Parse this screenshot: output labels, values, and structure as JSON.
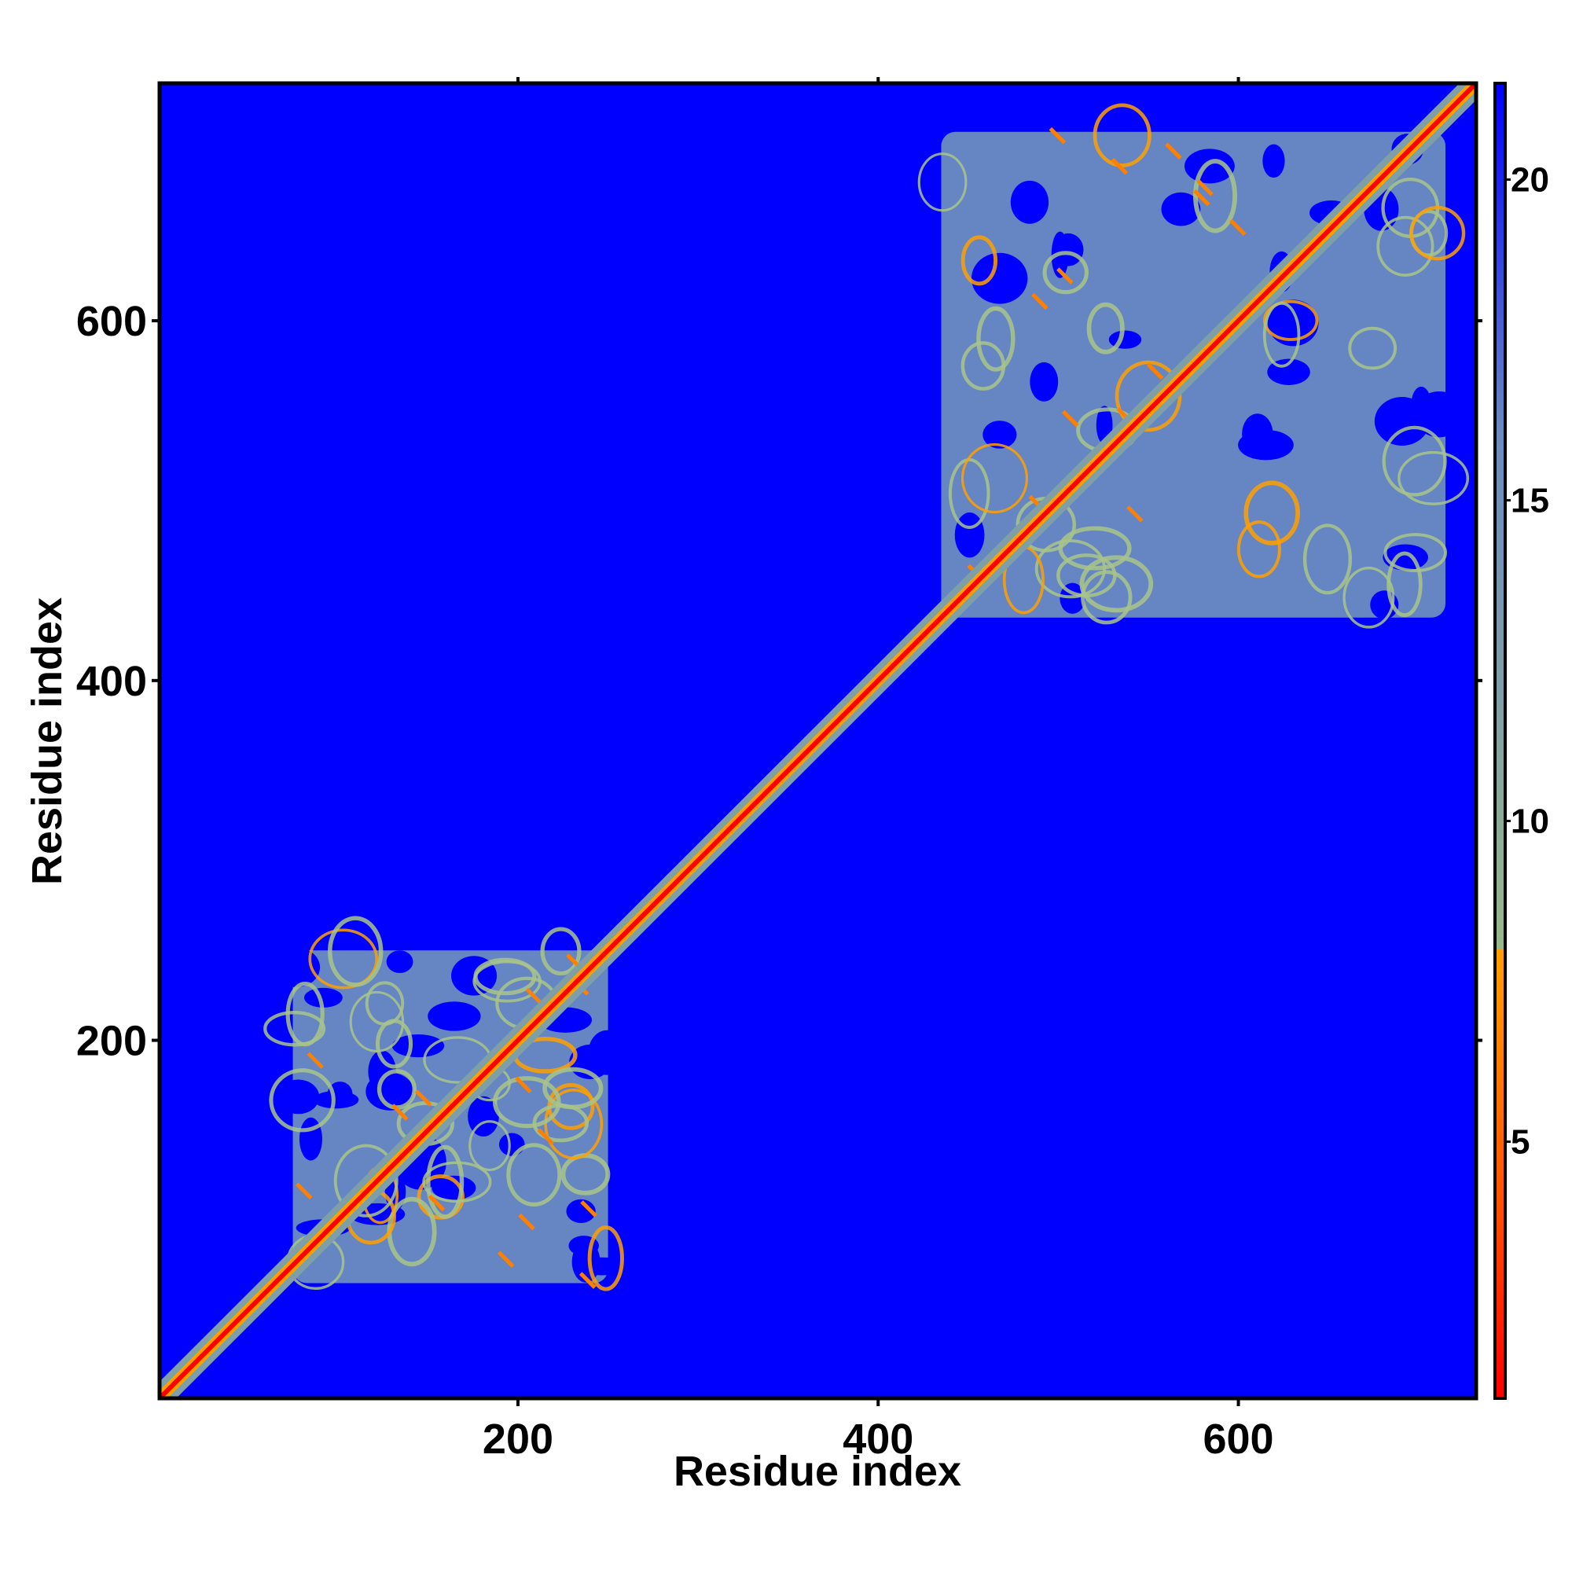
{
  "chart_data": {
    "type": "heatmap",
    "title": "",
    "xlabel": "Residue index",
    "ylabel": "Residue index",
    "xlim": [
      1,
      732
    ],
    "ylim": [
      1,
      732
    ],
    "x_ticks": [
      200,
      400,
      600
    ],
    "y_ticks": [
      200,
      400,
      600
    ],
    "grid": false,
    "colorbar": {
      "range": [
        1,
        21.5
      ],
      "ticks": [
        5,
        10,
        15,
        20
      ],
      "stops": [
        {
          "value": 1,
          "color": "#ff0000"
        },
        {
          "value": 4,
          "color": "#ff5000"
        },
        {
          "value": 8,
          "color": "#ffa000"
        },
        {
          "value": 8.01,
          "color": "#98b88a"
        },
        {
          "value": 12,
          "color": "#7f9fa8"
        },
        {
          "value": 16,
          "color": "#6a8cc0"
        },
        {
          "value": 21.5,
          "color": "#0000ff"
        }
      ]
    },
    "background_value": 21.5,
    "diagonal": {
      "from": 1,
      "to": 732,
      "value": 1
    },
    "domain_blocks": [
      {
        "name": "",
        "start_x": 75,
        "end_x": 250,
        "start_y": 65,
        "end_y": 250,
        "value": 17
      },
      {
        "name": "",
        "start_x": 435,
        "end_x": 715,
        "start_y": 435,
        "end_y": 705,
        "value": 17
      }
    ]
  }
}
